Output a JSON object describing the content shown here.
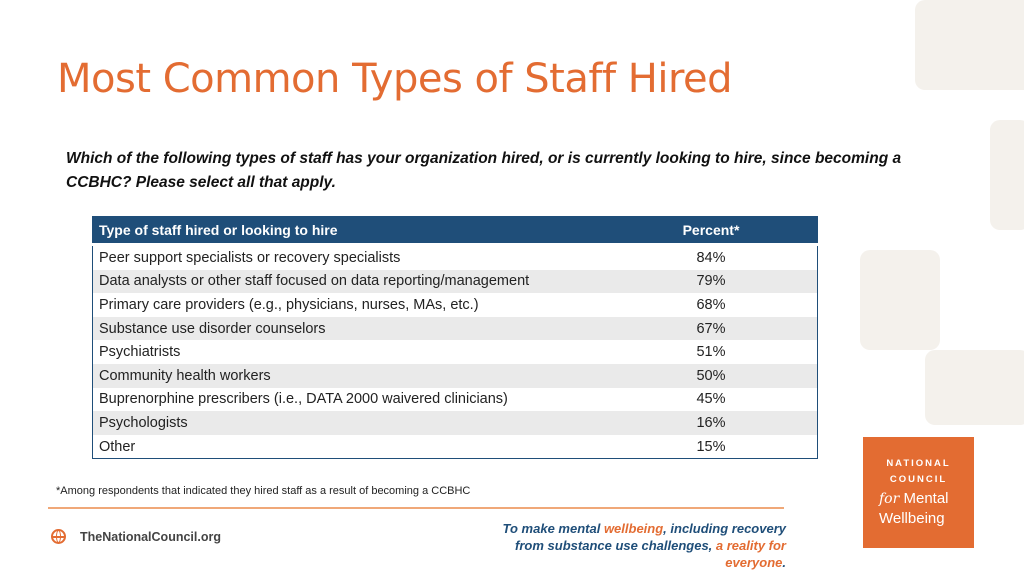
{
  "title": "Most Common Types of Staff Hired",
  "question": "Which of the following types of staff has your organization hired, or is currently looking to hire, since becoming a CCBHC? Please select all that apply.",
  "table": {
    "headers": [
      "Type of staff hired or looking to hire",
      "Percent*"
    ],
    "rows": [
      {
        "type": "Peer support specialists or recovery specialists",
        "percent": "84%"
      },
      {
        "type": "Data analysts or other staff focused on data reporting/management",
        "percent": "79%"
      },
      {
        "type": "Primary care providers (e.g., physicians, nurses, MAs, etc.)",
        "percent": "68%"
      },
      {
        "type": "Substance use disorder counselors",
        "percent": "67%"
      },
      {
        "type": "Psychiatrists",
        "percent": "51%"
      },
      {
        "type": "Community health workers",
        "percent": "50%"
      },
      {
        "type": "Buprenorphine prescribers (i.e., DATA 2000 waivered clinicians)",
        "percent": "45%"
      },
      {
        "type": "Psychologists",
        "percent": "16%"
      },
      {
        "type": "Other",
        "percent": "15%"
      }
    ]
  },
  "footnote": "*Among respondents that indicated they hired staff as a result of becoming a CCBHC",
  "footer": {
    "site": "TheNationalCouncil.org",
    "tagline_1": "To make mental ",
    "tagline_em1": "wellbeing",
    "tagline_2": ", including recovery from substance use challenges, ",
    "tagline_em2": "a reality for everyone",
    "tagline_3": "."
  },
  "logo": {
    "line1": "NATIONAL",
    "line2": "COUNCIL",
    "for": "for",
    "mental": "Mental",
    "line4": "Wellbeing"
  },
  "colors": {
    "accent": "#e36c32",
    "header": "#1f4e79",
    "stripe": "#eaeaea"
  }
}
